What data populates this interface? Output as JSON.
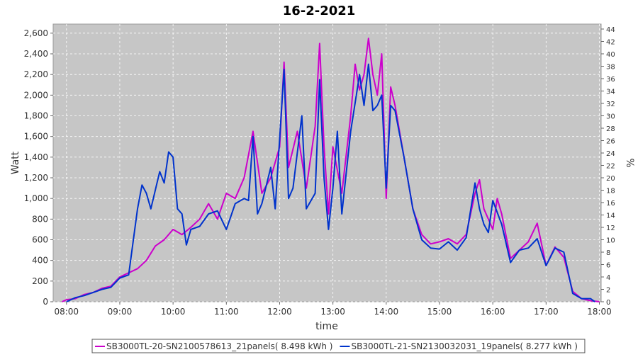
{
  "chart_data": {
    "type": "line",
    "title": "16-2-2021",
    "x_label": "time",
    "y_label": "Watt",
    "y2_label": "%",
    "xlim": [
      "07:45",
      "18:02"
    ],
    "xticks": [
      "08:00",
      "09:00",
      "10:00",
      "11:00",
      "12:00",
      "13:00",
      "14:00",
      "15:00",
      "16:00",
      "17:00",
      "18:00"
    ],
    "ylim": [
      0,
      2688
    ],
    "yticks": [
      0,
      200,
      400,
      600,
      800,
      {
        "value": 1000,
        "label": "1,000"
      },
      {
        "value": 1200,
        "label": "1,200"
      },
      {
        "value": 1400,
        "label": "1,400"
      },
      {
        "value": 1600,
        "label": "1,600"
      },
      {
        "value": 1800,
        "label": "1,800"
      },
      {
        "value": 2000,
        "label": "2,000"
      },
      {
        "value": 2200,
        "label": "2,200"
      },
      {
        "value": 2400,
        "label": "2,400"
      },
      {
        "value": 2600,
        "label": "2,600"
      }
    ],
    "y2lim": [
      0,
      44.8
    ],
    "y2ticks": [
      0,
      2,
      4,
      6,
      8,
      10,
      12,
      14,
      16,
      18,
      20,
      22,
      24,
      26,
      28,
      30,
      32,
      34,
      36,
      38,
      40,
      42,
      44
    ],
    "grid": true,
    "legend": "bottom",
    "series": [
      {
        "name": "SB3000TL-20-SN2100578613_21panels( 8.498 kWh )",
        "color": "#cc00cc",
        "x": [
          "07:55",
          "08:00",
          "08:10",
          "08:20",
          "08:30",
          "08:40",
          "08:50",
          "09:00",
          "09:10",
          "09:20",
          "09:30",
          "09:40",
          "09:50",
          "10:00",
          "10:10",
          "10:20",
          "10:30",
          "10:40",
          "10:50",
          "11:00",
          "11:10",
          "11:20",
          "11:30",
          "11:40",
          "11:50",
          "12:00",
          "12:05",
          "12:10",
          "12:20",
          "12:30",
          "12:40",
          "12:45",
          "12:50",
          "12:55",
          "13:00",
          "13:10",
          "13:20",
          "13:25",
          "13:30",
          "13:35",
          "13:40",
          "13:45",
          "13:50",
          "13:55",
          "14:00",
          "14:05",
          "14:10",
          "14:20",
          "14:30",
          "14:40",
          "14:50",
          "15:00",
          "15:10",
          "15:20",
          "15:30",
          "15:40",
          "15:45",
          "15:50",
          "16:00",
          "16:05",
          "16:10",
          "16:20",
          "16:30",
          "16:40",
          "16:50",
          "17:00",
          "17:10",
          "17:20",
          "17:30",
          "17:40",
          "17:50",
          "18:00"
        ],
        "values": [
          0,
          20,
          30,
          70,
          90,
          130,
          150,
          240,
          280,
          320,
          400,
          540,
          600,
          700,
          650,
          720,
          800,
          950,
          800,
          1050,
          1000,
          1200,
          1650,
          1050,
          1200,
          1500,
          2320,
          1300,
          1650,
          1100,
          1700,
          2500,
          1500,
          850,
          1500,
          1050,
          1800,
          2300,
          2050,
          2200,
          2550,
          2200,
          2000,
          2400,
          1000,
          2080,
          1900,
          1400,
          900,
          650,
          560,
          580,
          610,
          560,
          650,
          1050,
          1180,
          900,
          700,
          1000,
          850,
          420,
          500,
          580,
          760,
          350,
          530,
          430,
          100,
          30,
          10,
          0
        ]
      },
      {
        "name": "SB3000TL-21-SN2130032031_19panels( 8.277 kWh )",
        "color": "#0033cc",
        "x": [
          "08:00",
          "08:10",
          "08:20",
          "08:30",
          "08:40",
          "08:50",
          "09:00",
          "09:10",
          "09:20",
          "09:25",
          "09:30",
          "09:35",
          "09:45",
          "09:50",
          "09:55",
          "10:00",
          "10:05",
          "10:10",
          "10:15",
          "10:20",
          "10:30",
          "10:40",
          "10:50",
          "11:00",
          "11:10",
          "11:20",
          "11:25",
          "11:30",
          "11:35",
          "11:40",
          "11:50",
          "11:55",
          "12:05",
          "12:10",
          "12:15",
          "12:25",
          "12:30",
          "12:40",
          "12:45",
          "12:50",
          "12:55",
          "13:00",
          "13:05",
          "13:10",
          "13:20",
          "13:30",
          "13:35",
          "13:40",
          "13:45",
          "13:50",
          "13:55",
          "14:00",
          "14:05",
          "14:10",
          "14:20",
          "14:30",
          "14:40",
          "14:50",
          "15:00",
          "15:10",
          "15:20",
          "15:30",
          "15:40",
          "15:45",
          "15:50",
          "15:55",
          "16:00",
          "16:10",
          "16:20",
          "16:30",
          "16:40",
          "16:50",
          "17:00",
          "17:10",
          "17:20",
          "17:30",
          "17:40",
          "17:50",
          "17:55"
        ],
        "values": [
          0,
          40,
          60,
          90,
          120,
          140,
          230,
          260,
          900,
          1130,
          1050,
          900,
          1260,
          1150,
          1450,
          1400,
          900,
          850,
          550,
          700,
          730,
          850,
          880,
          700,
          950,
          1000,
          980,
          1600,
          850,
          950,
          1300,
          900,
          2250,
          1000,
          1100,
          1800,
          900,
          1050,
          2150,
          1200,
          700,
          1100,
          1650,
          850,
          1650,
          2200,
          1900,
          2300,
          1850,
          1900,
          2000,
          1100,
          1900,
          1850,
          1400,
          900,
          600,
          520,
          510,
          580,
          500,
          620,
          1150,
          900,
          750,
          670,
          980,
          750,
          380,
          500,
          520,
          610,
          350,
          520,
          480,
          80,
          30,
          30,
          0
        ]
      }
    ]
  }
}
